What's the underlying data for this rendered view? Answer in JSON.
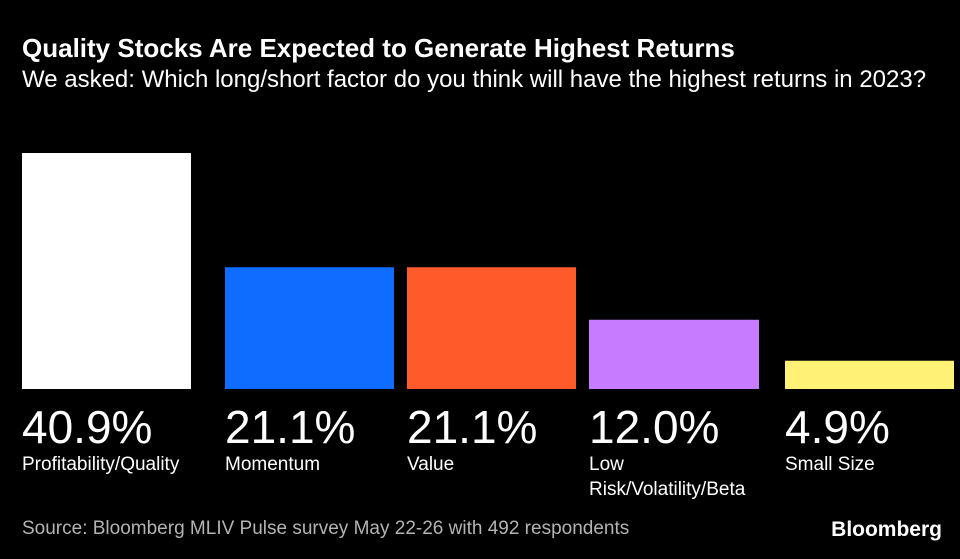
{
  "header": {
    "title": "Quality Stocks Are Expected to Generate Highest Returns",
    "subtitle": "We asked: Which long/short factor do you think will have the highest returns in 2023?"
  },
  "chart_data": {
    "type": "bar",
    "categories": [
      "Profitability/Quality",
      "Momentum",
      "Value",
      "Low Risk/Volatility/Beta",
      "Small Size"
    ],
    "values": [
      40.9,
      21.1,
      21.1,
      12.0,
      4.9
    ],
    "value_labels": [
      "40.9%",
      "21.1%",
      "21.1%",
      "12.0%",
      "4.9%"
    ],
    "colors": [
      "#ffffff",
      "#0e6dff",
      "#ff5a2a",
      "#c77bff",
      "#fff176"
    ],
    "unit": "%",
    "ylim": [
      0,
      40.9
    ],
    "grid": false,
    "legend": "none"
  },
  "footer": {
    "source": "Source: Bloomberg MLIV Pulse survey May 22-26 with 492 respondents",
    "brand": "Bloomberg"
  }
}
